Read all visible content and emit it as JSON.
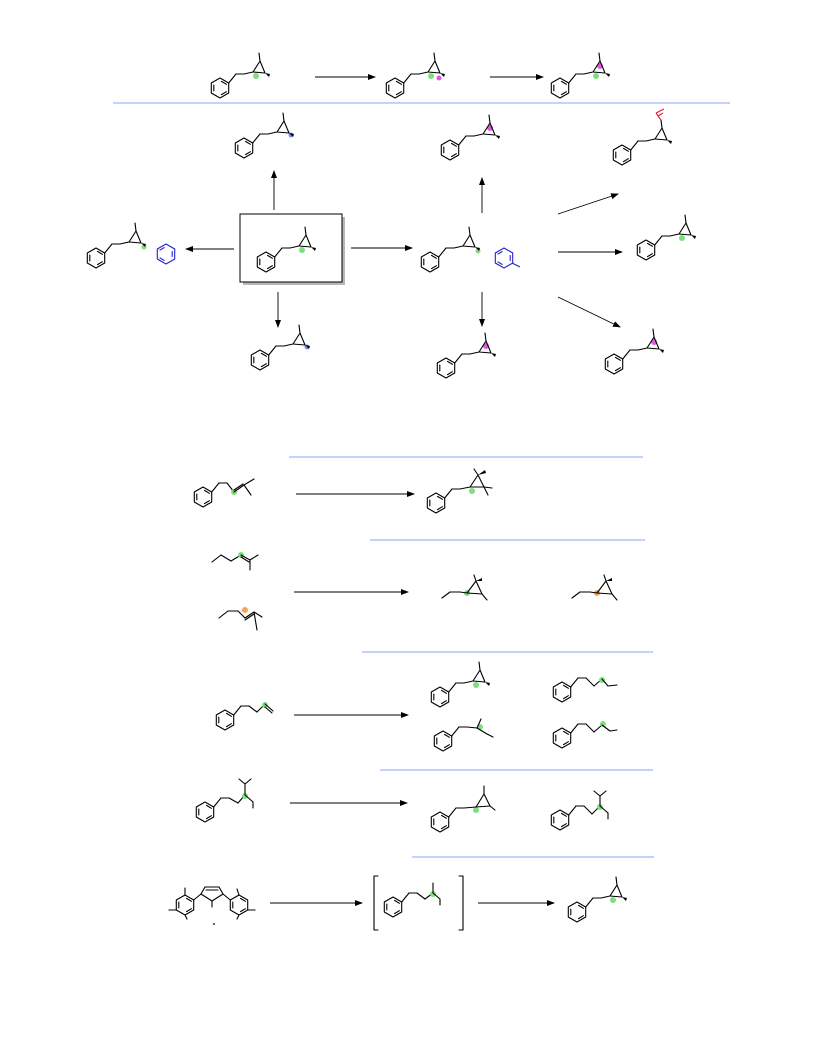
{
  "colors": {
    "separator": "#a6b4ff",
    "highlight_green": "#7de07d",
    "highlight_orange": "#f2a45a",
    "highlight_magenta": "#e05ae0",
    "highlight_blue": "#7d8cff",
    "aryl_blue": "#2222cc",
    "vinyl_red": "#e0202a"
  },
  "scheme": {
    "reaction_arrows": 19,
    "highlight_legend": [
      "green",
      "orange",
      "magenta",
      "blue"
    ]
  }
}
